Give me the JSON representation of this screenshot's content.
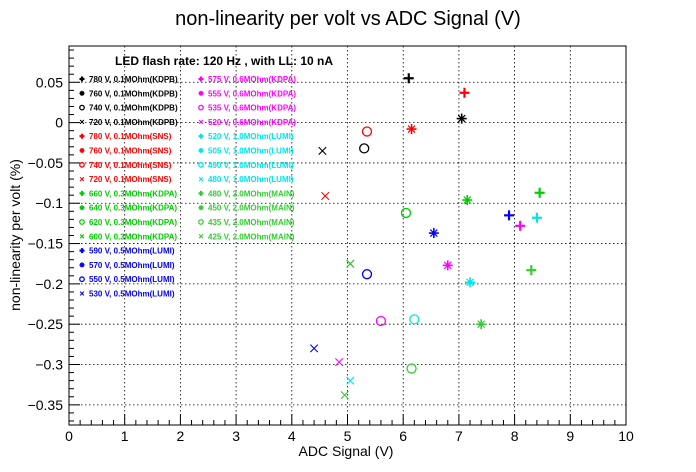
{
  "chart_data": {
    "type": "scatter",
    "title": "non-linearity per volt vs ADC Signal (V)",
    "xlabel": "ADC Signal (V)",
    "ylabel": "non-linearity per volt (%)",
    "xlim": [
      0,
      10
    ],
    "ylim": [
      -0.375,
      0.095
    ],
    "xticks": [
      "0",
      "1",
      "2",
      "3",
      "4",
      "5",
      "6",
      "7",
      "8",
      "9",
      "10"
    ],
    "yticks": [
      {
        "v": 0.05,
        "label": "0.05"
      },
      {
        "v": 0,
        "label": "0"
      },
      {
        "v": -0.05,
        "label": "−0.05"
      },
      {
        "v": -0.1,
        "label": "−0.1"
      },
      {
        "v": -0.15,
        "label": "−0.15"
      },
      {
        "v": -0.2,
        "label": "−0.2"
      },
      {
        "v": -0.25,
        "label": "−0.25"
      },
      {
        "v": -0.3,
        "label": "−0.3"
      },
      {
        "v": -0.35,
        "label": "−0.35"
      }
    ],
    "grid": true,
    "annotation": "LED flash rate: 120 Hz , with LL: 10 nA",
    "legend_placement": "top-left",
    "series": [
      {
        "name": "780 V, 0.1MOhm(KDPB)",
        "marker": "+",
        "color": "#000000",
        "x": [
          6.1
        ],
        "y": [
          0.055
        ]
      },
      {
        "name": "760 V, 0.1MOhm(KDPB)",
        "marker": "*",
        "color": "#000000",
        "x": [
          7.05
        ],
        "y": [
          0.005
        ]
      },
      {
        "name": "740 V, 0.1MOhm(KDPB)",
        "marker": "o",
        "color": "#000000",
        "x": [
          5.3
        ],
        "y": [
          -0.032
        ]
      },
      {
        "name": "720 V, 0.1MOhm(KDPB)",
        "marker": "x",
        "color": "#000000",
        "x": [
          4.55
        ],
        "y": [
          -0.035
        ]
      },
      {
        "name": "780 V, 0.1MOhm(SNS)",
        "marker": "+",
        "color": "#ff0000",
        "x": [
          7.1
        ],
        "y": [
          0.037
        ]
      },
      {
        "name": "760 V, 0.1MOhm(SNS)",
        "marker": "*",
        "color": "#ff0000",
        "x": [
          6.15
        ],
        "y": [
          -0.008
        ]
      },
      {
        "name": "740 V, 0.1MOhm(SNS)",
        "marker": "o",
        "color": "#ff0000",
        "x": [
          5.35
        ],
        "y": [
          -0.011
        ]
      },
      {
        "name": "720 V, 0.1MOhm(SNS)",
        "marker": "x",
        "color": "#ff0000",
        "x": [
          4.6
        ],
        "y": [
          -0.091
        ]
      },
      {
        "name": "660 V, 0.3MOhm(KDPA)",
        "marker": "+",
        "color": "#00cc00",
        "x": [
          8.45
        ],
        "y": [
          -0.087
        ]
      },
      {
        "name": "640 V, 0.3MOhm(KDPA)",
        "marker": "*",
        "color": "#00cc00",
        "x": [
          7.15
        ],
        "y": [
          -0.096
        ]
      },
      {
        "name": "620 V, 0.3MOhm(KDPA)",
        "marker": "o",
        "color": "#00cc00",
        "x": [
          6.05
        ],
        "y": [
          -0.112
        ]
      },
      {
        "name": "600 V, 0.3MOhm(KDPA)",
        "marker": "x",
        "color": "#00cc00",
        "x": [
          5.05
        ],
        "y": [
          -0.175
        ]
      },
      {
        "name": "590 V, 0.5MOhm(LUMI)",
        "marker": "+",
        "color": "#0000ff",
        "x": [
          7.9
        ],
        "y": [
          -0.115
        ]
      },
      {
        "name": "570 V, 0.5MOhm(LUMI)",
        "marker": "*",
        "color": "#0000ff",
        "x": [
          6.55
        ],
        "y": [
          -0.137
        ]
      },
      {
        "name": "550 V, 0.5MOhm(LUMI)",
        "marker": "o",
        "color": "#0000ff",
        "x": [
          5.35
        ],
        "y": [
          -0.188
        ]
      },
      {
        "name": "530 V, 0.5MOhm(LUMI)",
        "marker": "x",
        "color": "#0000ff",
        "x": [
          4.4
        ],
        "y": [
          -0.28
        ]
      },
      {
        "name": "575 V, 0.6MOhm(KDPA)",
        "marker": "+",
        "color": "#ff00ff",
        "x": [
          8.1
        ],
        "y": [
          -0.128
        ]
      },
      {
        "name": "555 V, 0.6MOhm(KDPA)",
        "marker": "*",
        "color": "#ff00ff",
        "x": [
          6.8
        ],
        "y": [
          -0.177
        ]
      },
      {
        "name": "535 V, 0.6MOhm(KDPA)",
        "marker": "o",
        "color": "#ff00ff",
        "x": [
          5.6
        ],
        "y": [
          -0.246
        ]
      },
      {
        "name": "520 V, 0.6MOhm(KDPA)",
        "marker": "x",
        "color": "#ff00ff",
        "x": [
          4.85
        ],
        "y": [
          -0.297
        ]
      },
      {
        "name": "520 V, 1.0MOhm(LUMI)",
        "marker": "+",
        "color": "#00e5e5",
        "x": [
          8.4
        ],
        "y": [
          -0.118
        ]
      },
      {
        "name": "505 V, 1.0MOhm(LUMI)",
        "marker": "*",
        "color": "#00e5e5",
        "x": [
          7.2
        ],
        "y": [
          -0.198
        ]
      },
      {
        "name": "490 V, 1.0MOhm(LUMI)",
        "marker": "o",
        "color": "#00e5e5",
        "x": [
          6.2
        ],
        "y": [
          -0.244
        ]
      },
      {
        "name": "480 V, 1.0MOhm(LUMI)",
        "marker": "x",
        "color": "#00e5e5",
        "x": [
          5.05
        ],
        "y": [
          -0.32
        ]
      },
      {
        "name": "480 V, 2.0MOhm(MAIN)",
        "marker": "+",
        "color": "#33cc33",
        "x": [
          8.3
        ],
        "y": [
          -0.183
        ]
      },
      {
        "name": "450 V, 2.0MOhm(MAIN)",
        "marker": "*",
        "color": "#33cc33",
        "x": [
          7.4
        ],
        "y": [
          -0.25
        ]
      },
      {
        "name": "435 V, 2.0MOhm(MAIN)",
        "marker": "o",
        "color": "#33cc33",
        "x": [
          6.15
        ],
        "y": [
          -0.305
        ]
      },
      {
        "name": "425 V, 2.0MOhm(MAIN)",
        "marker": "x",
        "color": "#33cc33",
        "x": [
          4.95
        ],
        "y": [
          -0.338
        ]
      }
    ]
  }
}
